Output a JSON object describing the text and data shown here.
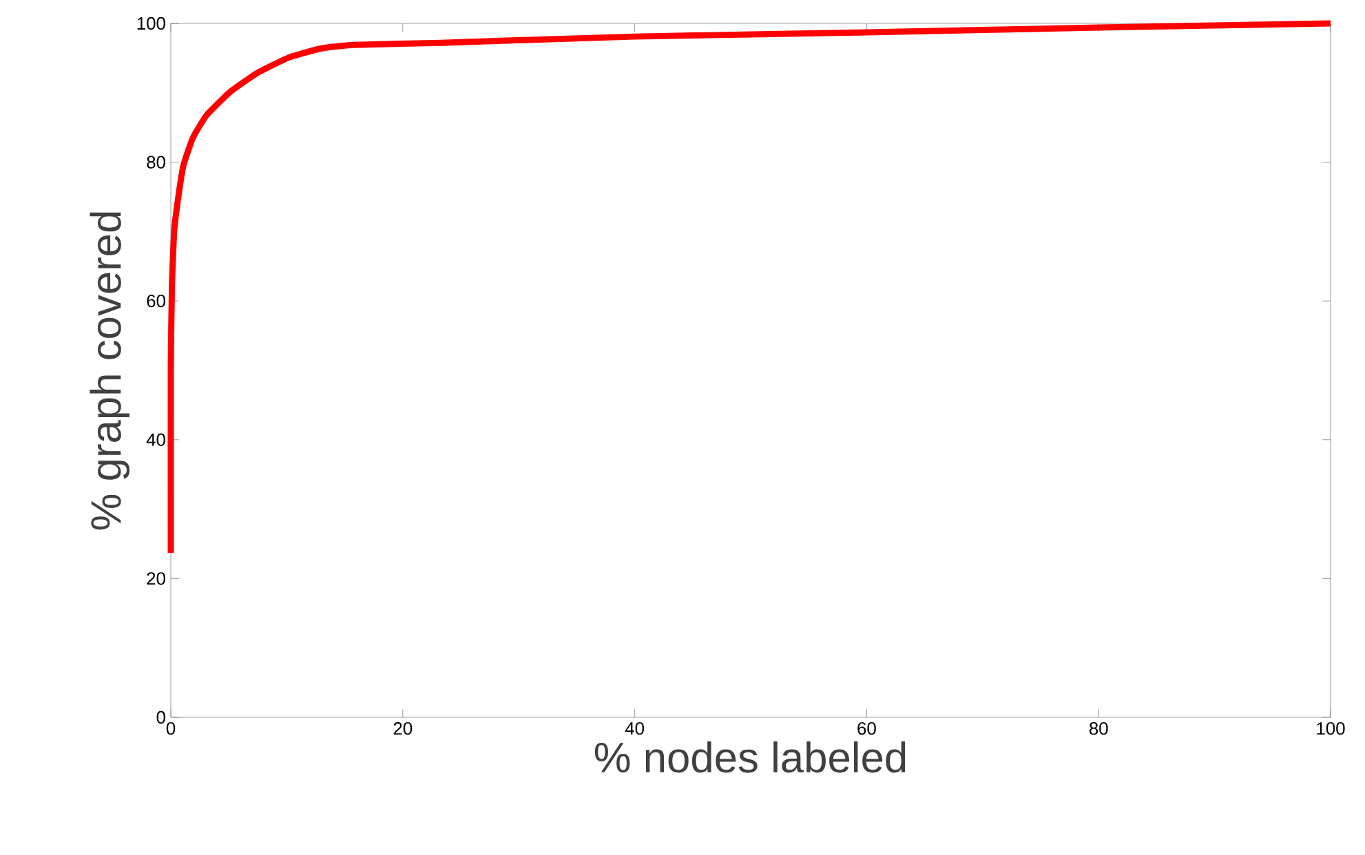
{
  "chart_data": {
    "type": "line",
    "xlabel": "% nodes labeled",
    "ylabel": "% graph covered",
    "x": [
      0,
      0,
      0.1,
      0.3,
      0.7,
      1.1,
      1.9,
      3.1,
      5.1,
      7.4,
      10.2,
      13,
      15.8,
      23.3,
      40,
      60,
      80,
      100
    ],
    "series": [
      {
        "color": "#ff0000",
        "values": [
          23.7,
          50.5,
          62.4,
          70.3,
          75.6,
          79.6,
          83.5,
          86.8,
          90.1,
          92.8,
          95.1,
          96.4,
          96.9,
          97.2,
          98.1,
          98.7,
          99.4,
          100
        ]
      }
    ],
    "xlim": [
      0,
      100
    ],
    "ylim": [
      0,
      100
    ],
    "xticks": [
      0,
      20,
      40,
      60,
      80,
      100
    ],
    "yticks": [
      0,
      20,
      40,
      60,
      80,
      100
    ],
    "grid": false,
    "marker": "none",
    "line_style": "solid"
  }
}
